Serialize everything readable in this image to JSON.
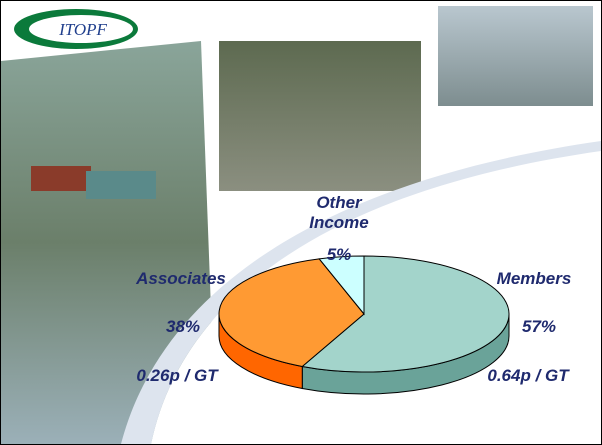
{
  "logo": "ITOPF",
  "chart_data": {
    "type": "pie",
    "categories": [
      "Members",
      "Associates",
      "Other Income"
    ],
    "values": [
      57,
      38,
      5
    ],
    "value_labels": [
      "57%",
      "38%",
      "5%"
    ],
    "annotations": [
      "0.64p / GT",
      "0.26p / GT"
    ],
    "colors": [
      "#a3d4cb",
      "#ff9a33",
      "#ccffff"
    ],
    "side_colors": [
      "#6aa399",
      "#ff6600",
      "#66cccc"
    ]
  }
}
